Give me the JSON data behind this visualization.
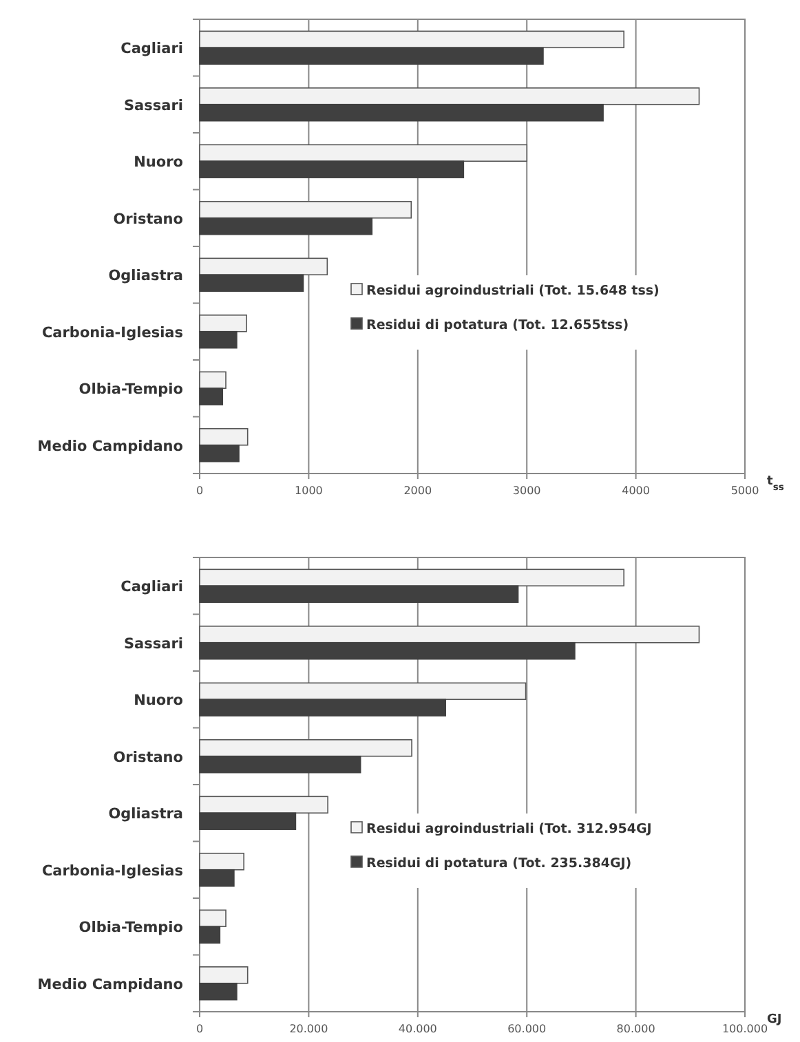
{
  "chart_data": [
    {
      "type": "bar",
      "orientation": "horizontal",
      "categories": [
        "Cagliari",
        "Sassari",
        "Nuoro",
        "Oristano",
        "Ogliastra",
        "Carbonia-Iglesias",
        "Olbia-Tempio",
        "Medio Campidano"
      ],
      "xlabel": "t$_{ss}$",
      "xlim": [
        0,
        5000
      ],
      "xticks": [
        0,
        1000,
        2000,
        3000,
        4000,
        5000
      ],
      "grid": "x",
      "legend": "right",
      "series": [
        {
          "name": "Residui agroindustriali (Tot. 15.648 tss)",
          "color": "#f2f2f2",
          "values": [
            3890,
            4580,
            3000,
            1940,
            1170,
            430,
            240,
            440
          ]
        },
        {
          "name": "Residui di potatura (Tot. 12.655tss)",
          "color": "#404040",
          "values": [
            3150,
            3700,
            2420,
            1580,
            950,
            340,
            210,
            360
          ]
        }
      ]
    },
    {
      "type": "bar",
      "orientation": "horizontal",
      "categories": [
        "Cagliari",
        "Sassari",
        "Nuoro",
        "Oristano",
        "Ogliastra",
        "Carbonia-Iglesias",
        "Olbia-Tempio",
        "Medio Campidano"
      ],
      "xlabel": "GJ",
      "xlim": [
        0,
        100000
      ],
      "xticks": [
        0,
        {
          "value": 20000,
          "label": "20.000"
        },
        {
          "value": 40000,
          "label": "40.000"
        },
        {
          "value": 60000,
          "label": "60.000"
        },
        {
          "value": 80000,
          "label": "80.000"
        },
        {
          "value": 100000,
          "label": "100.000"
        }
      ],
      "grid": "x",
      "legend": "right",
      "series": [
        {
          "name": "Residui agroindustriali (Tot. 312.954GJ",
          "color": "#f2f2f2",
          "values": [
            77800,
            91600,
            59800,
            38900,
            23500,
            8100,
            4800,
            8800
          ]
        },
        {
          "name": "Residui di potatura (Tot. 235.384GJ)",
          "color": "#404040",
          "values": [
            58400,
            68800,
            45100,
            29500,
            17600,
            6300,
            3700,
            6800
          ]
        }
      ]
    }
  ]
}
